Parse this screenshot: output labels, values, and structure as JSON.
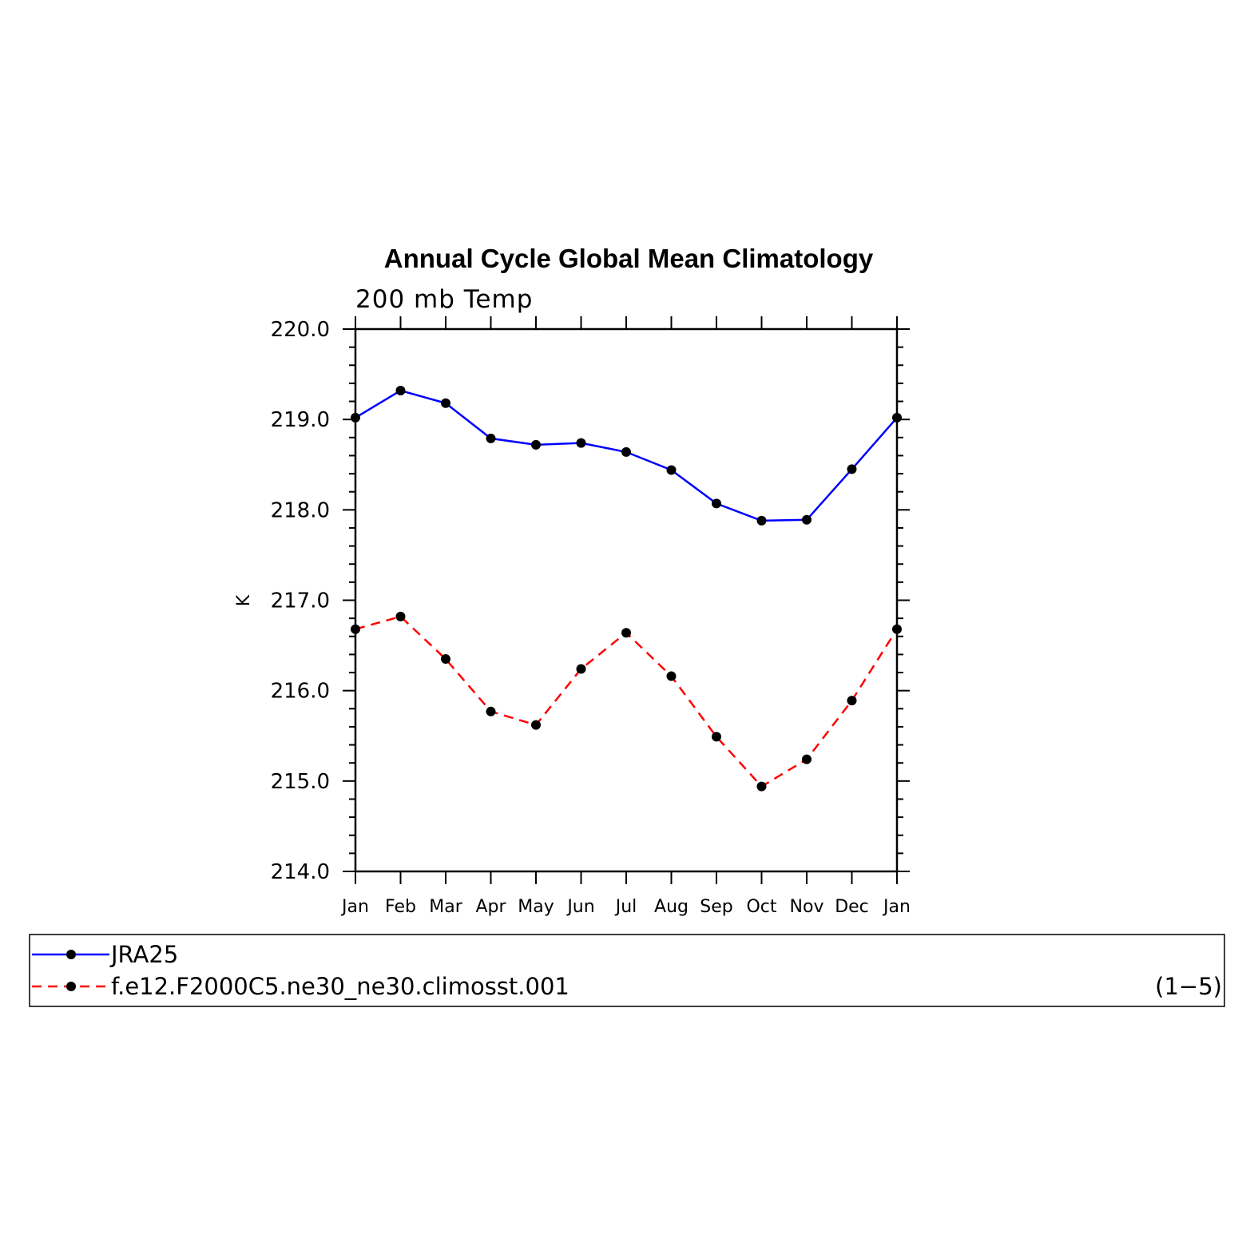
{
  "chart_data": {
    "type": "line",
    "title": "Annual Cycle Global Mean Climatology",
    "subtitle": "200 mb Temp",
    "xlabel": "",
    "ylabel": "K",
    "categories": [
      "Jan",
      "Feb",
      "Mar",
      "Apr",
      "May",
      "Jun",
      "Jul",
      "Aug",
      "Sep",
      "Oct",
      "Nov",
      "Dec",
      "Jan"
    ],
    "ylim": [
      214.0,
      220.0
    ],
    "yticks": [
      "220.0",
      "219.0",
      "218.0",
      "217.0",
      "216.0",
      "215.0",
      "214.0"
    ],
    "ytick_values": [
      220.0,
      219.0,
      218.0,
      217.0,
      216.0,
      215.0,
      214.0
    ],
    "grid": false,
    "legend_placement": "bottom",
    "series": [
      {
        "name": "JRA25",
        "color": "#0000ff",
        "line_style": "solid",
        "marker": "dot",
        "values": [
          219.02,
          219.32,
          219.18,
          218.79,
          218.72,
          218.74,
          218.64,
          218.44,
          218.07,
          217.88,
          217.89,
          218.45,
          219.02
        ]
      },
      {
        "name": "f.e12.F2000C5.ne30_ne30.climosst.001",
        "color": "#ff0000",
        "line_style": "dashed",
        "marker": "dot",
        "values": [
          216.68,
          216.82,
          216.35,
          215.77,
          215.62,
          216.24,
          216.64,
          216.16,
          215.49,
          214.94,
          215.24,
          215.89,
          216.68
        ]
      }
    ],
    "legend_note": "(1−5)"
  }
}
